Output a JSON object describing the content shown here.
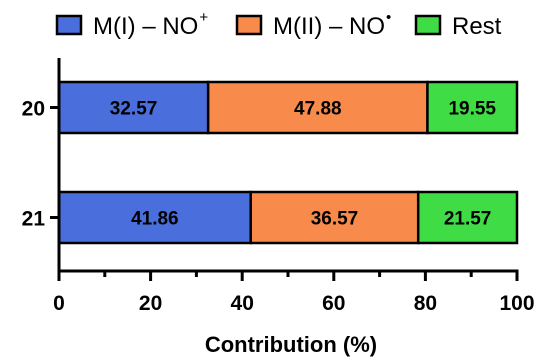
{
  "chart_data": {
    "type": "bar",
    "orientation": "horizontal",
    "stacked": true,
    "categories": [
      "20",
      "21"
    ],
    "series": [
      {
        "name": "M(I) – NO",
        "name_superscript": "+",
        "color": "#4a6fdc",
        "values": [
          32.57,
          41.86
        ]
      },
      {
        "name": "M(II) – NO",
        "name_superscript": "•",
        "color": "#f88a4c",
        "values": [
          47.88,
          36.57
        ]
      },
      {
        "name": "Rest",
        "name_superscript": "",
        "color": "#3fdc45",
        "values": [
          19.55,
          21.57
        ]
      }
    ],
    "data_labels": [
      [
        "32.57",
        "47.88",
        "19.55"
      ],
      [
        "41.86",
        "36.57",
        "21.57"
      ]
    ],
    "xlabel": "Contribution (%)",
    "ylabel": "",
    "title": "",
    "xlim": [
      0,
      100
    ],
    "xticks": [
      0,
      20,
      40,
      60,
      80,
      100
    ],
    "xtick_labels": [
      "0",
      "20",
      "40",
      "60",
      "80",
      "100"
    ],
    "minor_ticks": true,
    "grid": false,
    "legend_position": "top"
  }
}
